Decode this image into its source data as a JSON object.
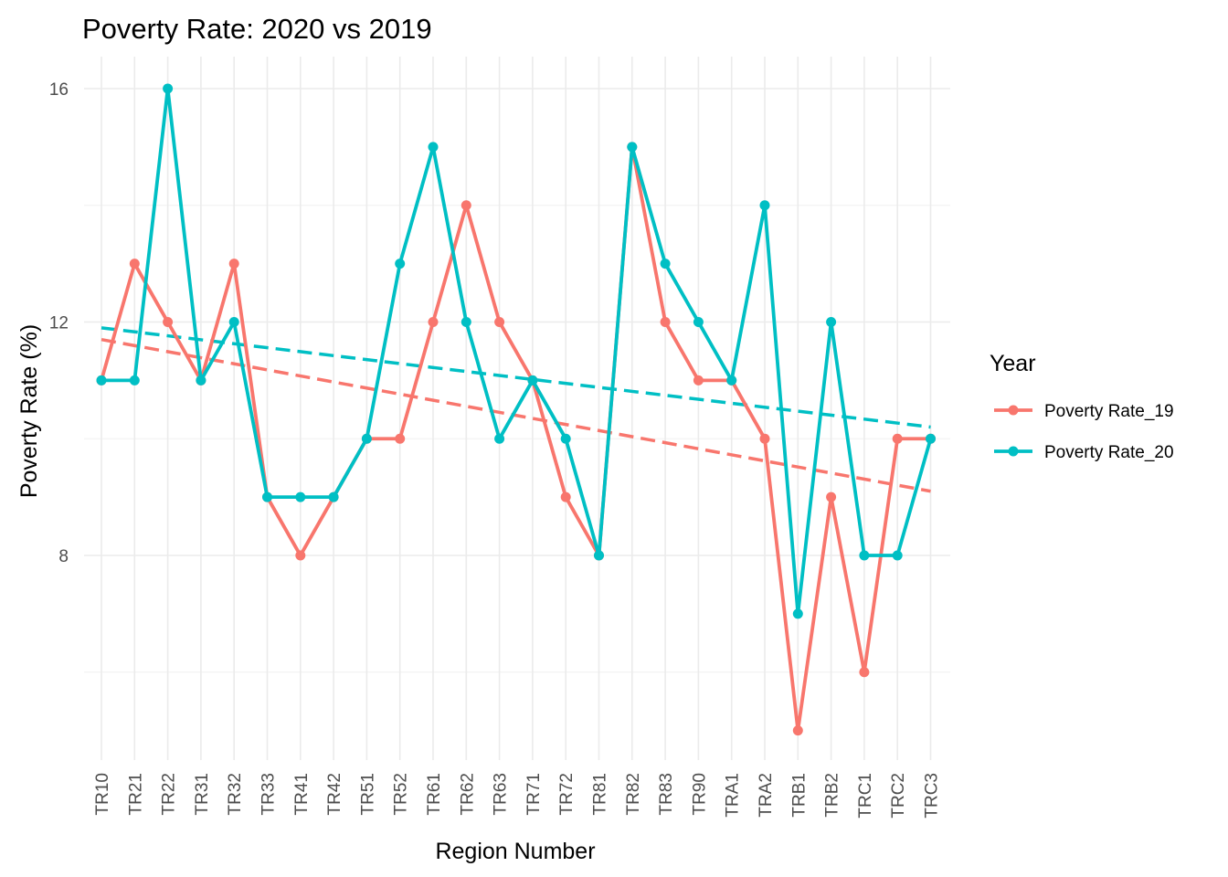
{
  "chart_data": {
    "type": "line",
    "title": "Poverty Rate: 2020 vs 2019",
    "xlabel": "Region Number",
    "ylabel": "Poverty Rate (%)",
    "categories": [
      "TR10",
      "TR21",
      "TR22",
      "TR31",
      "TR32",
      "TR33",
      "TR41",
      "TR42",
      "TR51",
      "TR52",
      "TR61",
      "TR62",
      "TR63",
      "TR71",
      "TR72",
      "TR81",
      "TR82",
      "TR83",
      "TR90",
      "TRA1",
      "TRA2",
      "TRB1",
      "TRB2",
      "TRC1",
      "TRC2",
      "TRC3"
    ],
    "yticks": [
      8,
      12,
      16
    ],
    "ylim": [
      4.9,
      16.5
    ],
    "grid": true,
    "legend": {
      "title": "Year",
      "position": "right"
    },
    "series": [
      {
        "name": "Poverty Rate_19",
        "color": "#F8766D",
        "values": [
          11,
          13,
          12,
          11,
          13,
          9,
          8,
          9,
          10,
          10,
          12,
          14,
          12,
          11,
          9,
          8,
          15,
          12,
          11,
          11,
          10,
          5,
          9,
          6,
          10,
          10
        ],
        "trend": [
          11.7,
          9.1
        ]
      },
      {
        "name": "Poverty Rate_20",
        "color": "#00BFC4",
        "values": [
          11,
          11,
          16,
          11,
          12,
          9,
          9,
          9,
          10,
          13,
          15,
          12,
          10,
          11,
          10,
          8,
          15,
          13,
          12,
          11,
          14,
          7,
          12,
          8,
          8,
          10
        ],
        "trend": [
          11.9,
          10.2
        ]
      }
    ]
  }
}
